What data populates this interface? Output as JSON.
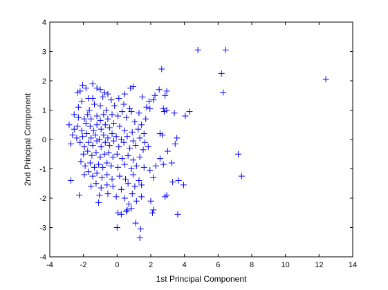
{
  "chart_data": {
    "type": "scatter",
    "title": "",
    "xlabel": "1st Principal Component",
    "ylabel": "2nd Principal Component",
    "xlim": [
      -4,
      14
    ],
    "ylim": [
      -4,
      4
    ],
    "xticks": [
      -4,
      -2,
      0,
      2,
      4,
      6,
      8,
      10,
      12,
      14
    ],
    "yticks": [
      -4,
      -3,
      -2,
      -1,
      0,
      1,
      2,
      3,
      4
    ],
    "grid": false,
    "legend": "none",
    "marker": "+",
    "marker_color": "#0000ff",
    "series": [
      {
        "points": [
          [
            4.8,
            3.05
          ],
          [
            6.45,
            3.05
          ],
          [
            6.2,
            2.25
          ],
          [
            6.3,
            1.6
          ],
          [
            12.4,
            2.05
          ],
          [
            7.2,
            -0.5
          ],
          [
            7.4,
            -1.25
          ],
          [
            2.65,
            2.4
          ],
          [
            -1.45,
            1.9
          ],
          [
            -2.05,
            1.85
          ],
          [
            -1.85,
            1.75
          ],
          [
            -1.2,
            1.75
          ],
          [
            -1.0,
            1.7
          ],
          [
            -2.2,
            1.65
          ],
          [
            -2.35,
            1.6
          ],
          [
            -0.75,
            1.6
          ],
          [
            -0.55,
            1.55
          ],
          [
            0.45,
            1.55
          ],
          [
            0.8,
            1.75
          ],
          [
            0.95,
            1.8
          ],
          [
            2.5,
            1.7
          ],
          [
            2.95,
            1.65
          ],
          [
            2.25,
            1.5
          ],
          [
            2.85,
            1.5
          ],
          [
            2.15,
            1.35
          ],
          [
            1.5,
            1.45
          ],
          [
            1.9,
            1.3
          ],
          [
            -1.7,
            1.4
          ],
          [
            -1.45,
            1.4
          ],
          [
            -0.85,
            1.45
          ],
          [
            -0.35,
            1.35
          ],
          [
            0.1,
            1.4
          ],
          [
            1.75,
            1.1
          ],
          [
            1.95,
            1.05
          ],
          [
            2.75,
            1.05
          ],
          [
            2.95,
            1.0
          ],
          [
            2.8,
            0.95
          ],
          [
            3.4,
            0.9
          ],
          [
            4.05,
            0.8
          ],
          [
            4.3,
            0.95
          ],
          [
            0.4,
            1.2
          ],
          [
            0.75,
            1.05
          ],
          [
            -2.1,
            1.3
          ],
          [
            -2.3,
            1.1
          ],
          [
            -1.65,
            1.0
          ],
          [
            -1.35,
            1.2
          ],
          [
            -1.0,
            1.15
          ],
          [
            -0.65,
            1.0
          ],
          [
            -0.15,
            1.15
          ],
          [
            0.3,
            0.95
          ],
          [
            0.85,
            0.95
          ],
          [
            1.3,
            0.9
          ],
          [
            -2.55,
            0.85
          ],
          [
            -2.3,
            0.75
          ],
          [
            -1.95,
            0.7
          ],
          [
            -1.75,
            0.85
          ],
          [
            -1.55,
            0.7
          ],
          [
            -1.2,
            0.8
          ],
          [
            -1.0,
            0.65
          ],
          [
            -0.8,
            0.85
          ],
          [
            -0.55,
            0.7
          ],
          [
            -0.3,
            0.85
          ],
          [
            0.05,
            0.8
          ],
          [
            0.55,
            0.75
          ],
          [
            1.05,
            0.6
          ],
          [
            1.45,
            0.5
          ],
          [
            1.7,
            0.7
          ],
          [
            -2.85,
            0.5
          ],
          [
            -2.55,
            0.35
          ],
          [
            -2.35,
            0.45
          ],
          [
            -2.1,
            0.3
          ],
          [
            -1.85,
            0.55
          ],
          [
            -1.6,
            0.45
          ],
          [
            -1.4,
            0.3
          ],
          [
            -1.2,
            0.5
          ],
          [
            -0.95,
            0.35
          ],
          [
            -0.7,
            0.5
          ],
          [
            -0.45,
            0.4
          ],
          [
            -0.2,
            0.55
          ],
          [
            0.15,
            0.45
          ],
          [
            0.45,
            0.3
          ],
          [
            0.9,
            0.25
          ],
          [
            1.25,
            0.35
          ],
          [
            1.6,
            0.2
          ],
          [
            2.55,
            0.2
          ],
          [
            2.7,
            0.15
          ],
          [
            3.55,
            0.05
          ],
          [
            3.45,
            -0.15
          ],
          [
            -2.65,
            0.15
          ],
          [
            -2.4,
            0.05
          ],
          [
            -2.05,
            0.1
          ],
          [
            -1.8,
            0.2
          ],
          [
            -1.55,
            0.05
          ],
          [
            -1.3,
            0.15
          ],
          [
            -1.05,
            0.0
          ],
          [
            -0.8,
            0.15
          ],
          [
            -0.55,
            0.05
          ],
          [
            -0.3,
            0.2
          ],
          [
            -0.05,
            0.1
          ],
          [
            0.25,
            0.0
          ],
          [
            0.6,
            0.1
          ],
          [
            0.95,
            -0.05
          ],
          [
            1.35,
            0.05
          ],
          [
            1.65,
            -0.1
          ],
          [
            -2.75,
            -0.15
          ],
          [
            -2.2,
            -0.1
          ],
          [
            -1.95,
            -0.25
          ],
          [
            -1.7,
            -0.1
          ],
          [
            -1.45,
            -0.2
          ],
          [
            -1.2,
            -0.05
          ],
          [
            -0.95,
            -0.25
          ],
          [
            -0.7,
            -0.1
          ],
          [
            -0.45,
            -0.2
          ],
          [
            -0.2,
            -0.05
          ],
          [
            0.1,
            -0.25
          ],
          [
            0.4,
            -0.1
          ],
          [
            0.75,
            -0.3
          ],
          [
            1.1,
            -0.2
          ],
          [
            1.55,
            -0.35
          ],
          [
            1.85,
            -0.25
          ],
          [
            3.0,
            -0.4
          ],
          [
            -2.0,
            -0.5
          ],
          [
            -1.75,
            -0.4
          ],
          [
            -1.5,
            -0.55
          ],
          [
            -1.25,
            -0.45
          ],
          [
            -1.0,
            -0.6
          ],
          [
            -0.75,
            -0.5
          ],
          [
            -0.5,
            -0.45
          ],
          [
            -0.25,
            -0.6
          ],
          [
            0.0,
            -0.5
          ],
          [
            0.3,
            -0.65
          ],
          [
            0.65,
            -0.55
          ],
          [
            0.95,
            -0.7
          ],
          [
            1.35,
            -0.6
          ],
          [
            2.55,
            -0.65
          ],
          [
            2.75,
            -0.85
          ],
          [
            3.25,
            -0.8
          ],
          [
            -2.15,
            -0.75
          ],
          [
            -1.9,
            -0.9
          ],
          [
            -1.6,
            -0.8
          ],
          [
            -1.35,
            -0.95
          ],
          [
            -1.1,
            -0.85
          ],
          [
            -0.85,
            -0.95
          ],
          [
            -0.6,
            -0.8
          ],
          [
            -0.35,
            -0.9
          ],
          [
            0.05,
            -0.95
          ],
          [
            0.45,
            -0.85
          ],
          [
            0.85,
            -1.0
          ],
          [
            1.15,
            -0.9
          ],
          [
            1.6,
            -0.95
          ],
          [
            1.95,
            -1.05
          ],
          [
            2.3,
            -0.9
          ],
          [
            -1.95,
            -1.2
          ],
          [
            -1.7,
            -1.1
          ],
          [
            -1.45,
            -1.25
          ],
          [
            -1.2,
            -1.15
          ],
          [
            -0.9,
            -1.3
          ],
          [
            -0.6,
            -1.2
          ],
          [
            -0.3,
            -1.35
          ],
          [
            0.15,
            -1.25
          ],
          [
            0.5,
            -1.35
          ],
          [
            0.95,
            -1.2
          ],
          [
            1.3,
            -1.4
          ],
          [
            2.15,
            -1.3
          ],
          [
            3.3,
            -1.45
          ],
          [
            3.65,
            -1.4
          ],
          [
            3.95,
            -1.55
          ],
          [
            -1.55,
            -1.6
          ],
          [
            -1.25,
            -1.5
          ],
          [
            -0.95,
            -1.65
          ],
          [
            -0.6,
            -1.55
          ],
          [
            -0.25,
            -1.6
          ],
          [
            0.25,
            -1.7
          ],
          [
            0.65,
            -1.5
          ],
          [
            1.05,
            -1.6
          ],
          [
            1.45,
            -1.55
          ],
          [
            -2.75,
            -1.4
          ],
          [
            -2.25,
            -1.9
          ],
          [
            -1.05,
            -1.9
          ],
          [
            -0.55,
            -1.85
          ],
          [
            -0.05,
            -1.95
          ],
          [
            0.45,
            -2.0
          ],
          [
            0.9,
            -1.85
          ],
          [
            1.45,
            -1.95
          ],
          [
            2.0,
            -2.1
          ],
          [
            2.85,
            -1.95
          ],
          [
            2.95,
            -1.9
          ],
          [
            -1.1,
            -2.15
          ],
          [
            0.7,
            -2.2
          ],
          [
            1.15,
            -2.1
          ],
          [
            0.85,
            -2.35
          ],
          [
            0.6,
            -2.4
          ],
          [
            0.25,
            -2.55
          ],
          [
            0.05,
            -2.5
          ],
          [
            0.55,
            -2.45
          ],
          [
            2.15,
            -2.4
          ],
          [
            2.1,
            -2.5
          ],
          [
            3.6,
            -2.55
          ],
          [
            1.1,
            -2.85
          ],
          [
            1.4,
            -3.05
          ],
          [
            1.35,
            -3.35
          ],
          [
            0.0,
            -3.0
          ]
        ]
      }
    ]
  }
}
